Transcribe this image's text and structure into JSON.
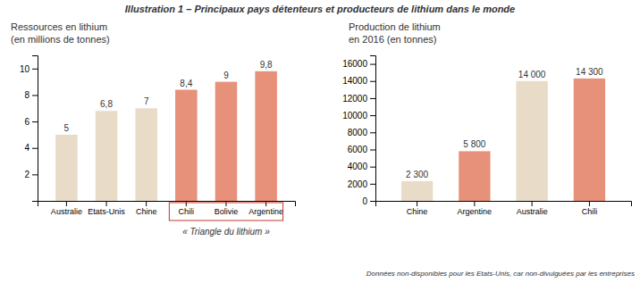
{
  "title": "Illustration 1  –  Principaux pays détenteurs et producteurs de lithium dans le monde",
  "chart_data": [
    {
      "type": "bar",
      "title": "Ressources en lithium",
      "subtitle": "(en millions de tonnes)",
      "categories": [
        "Australie",
        "Etats-Unis",
        "Chine",
        "Chili",
        "Bolivie",
        "Argentine"
      ],
      "values": [
        5,
        6.8,
        7,
        8.4,
        9,
        9.8
      ],
      "value_labels": [
        "5",
        "6,8",
        "7",
        "8,4",
        "9",
        "9,8"
      ],
      "colors": [
        "#e8dcc8",
        "#e8dcc8",
        "#e8dcc8",
        "#e8917a",
        "#e8917a",
        "#e8917a"
      ],
      "ylim": [
        0,
        11
      ],
      "yticks": [
        2,
        4,
        6,
        8,
        10
      ],
      "grid": false,
      "data_labels": true,
      "annotations": [
        {
          "text": "« Triangle du lithium »",
          "categories": [
            "Chili",
            "Bolivie",
            "Argentine"
          ],
          "color": "#c0392b"
        }
      ]
    },
    {
      "type": "bar",
      "title": "Production de lithium",
      "subtitle": "en 2016 (en tonnes)",
      "categories": [
        "Chine",
        "Argentine",
        "Australie",
        "Chili"
      ],
      "values": [
        2300,
        5800,
        14000,
        14300
      ],
      "value_labels": [
        "2 300",
        "5 800",
        "14 000",
        "14 300"
      ],
      "colors": [
        "#e8dcc8",
        "#e8917a",
        "#e8dcc8",
        "#e8917a"
      ],
      "ylim": [
        0,
        17000
      ],
      "yticks": [
        0,
        2000,
        4000,
        6000,
        8000,
        10000,
        12000,
        14000,
        16000
      ],
      "grid": false,
      "data_labels": true,
      "footnote": "Données non-disponibles pour les Etats-Unis, car non-divulguées par les entreprises"
    }
  ]
}
